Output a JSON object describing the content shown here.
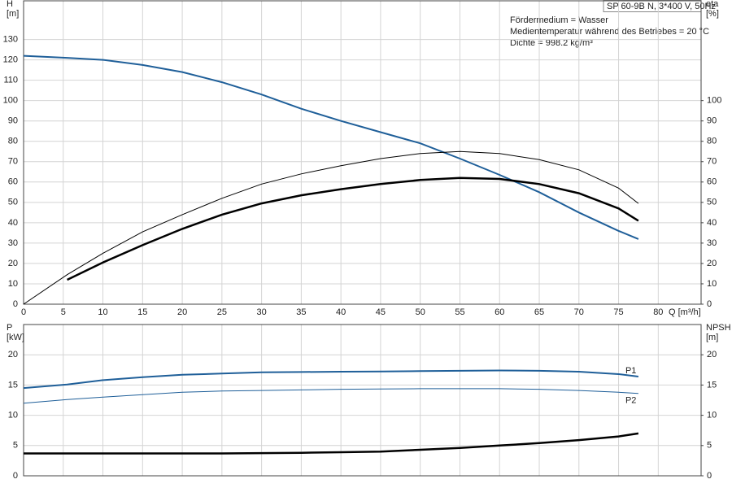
{
  "chart_data": [
    {
      "type": "line",
      "title": "SP 60-9B N, 3*400 V, 50Hz",
      "annotations": [
        "Fördermedium = Wasser",
        "Medientemperatur während des Betriebes = 20 °C",
        "Dichte = 998.2 kg/m³"
      ],
      "ylabel": [
        "H",
        "[m]"
      ],
      "y2label": [
        "eta",
        "[%]"
      ],
      "xlabel": "Q [m³/h]",
      "grid": true,
      "xlim": [
        0,
        85.4
      ],
      "xticks": [
        0,
        5,
        10,
        15,
        20,
        25,
        30,
        35,
        40,
        45,
        50,
        55,
        60,
        65,
        70,
        75,
        80
      ],
      "ylim": [
        0,
        149
      ],
      "yticks": [
        0,
        10,
        20,
        30,
        40,
        50,
        60,
        70,
        80,
        90,
        100,
        110,
        120,
        130
      ],
      "y2lim": [
        0,
        149
      ],
      "y2ticks": [
        0,
        10,
        20,
        30,
        40,
        50,
        60,
        70,
        80,
        90,
        100
      ],
      "x": [
        0,
        5.5,
        10,
        15,
        20,
        25,
        30,
        35,
        40,
        45,
        50,
        55,
        60,
        65,
        70,
        75,
        77.5
      ],
      "series": [
        {
          "color": "#1f5f99",
          "line_width": 2,
          "values": [
            122,
            121,
            120,
            117.5,
            114,
            109,
            103,
            96,
            90,
            84.5,
            79,
            71.5,
            63.5,
            55,
            45,
            36,
            32
          ]
        },
        {
          "color": "#000000",
          "line_width": 1,
          "axis": "y2",
          "values": [
            0,
            14.5,
            25,
            35.5,
            44,
            52,
            59,
            64,
            68,
            71.5,
            74,
            75,
            74,
            71,
            66,
            57,
            49.5
          ]
        },
        {
          "color": "#000000",
          "line_width": 2.5,
          "axis": "y2",
          "values": [
            null,
            12,
            20.5,
            29,
            37,
            44,
            49.5,
            53.5,
            56.5,
            59,
            61,
            62,
            61.5,
            59,
            54.5,
            47,
            41
          ]
        }
      ]
    },
    {
      "type": "line",
      "ylabel": [
        "P",
        "[kW]"
      ],
      "y2label": [
        "NPSH",
        "[m]"
      ],
      "grid": true,
      "ylim": [
        0,
        25
      ],
      "yticks": [
        0,
        5,
        10,
        15,
        20
      ],
      "y2lim": [
        0,
        25
      ],
      "y2ticks": [
        0,
        5,
        10,
        15,
        20
      ],
      "x": [
        0,
        5.5,
        10,
        15,
        20,
        25,
        30,
        35,
        40,
        45,
        50,
        55,
        60,
        65,
        70,
        75,
        77.5
      ],
      "series": [
        {
          "name": "P1",
          "color": "#1f5f99",
          "line_width": 2,
          "values": [
            14.5,
            15.1,
            15.8,
            16.3,
            16.7,
            16.9,
            17.1,
            17.15,
            17.2,
            17.25,
            17.3,
            17.35,
            17.4,
            17.35,
            17.2,
            16.8,
            16.4
          ]
        },
        {
          "name": "P2",
          "color": "#1f5f99",
          "line_width": 1,
          "values": [
            12,
            12.6,
            13,
            13.4,
            13.8,
            14,
            14.1,
            14.2,
            14.3,
            14.35,
            14.4,
            14.4,
            14.4,
            14.3,
            14.1,
            13.8,
            13.6
          ]
        },
        {
          "color": "#000000",
          "line_width": 2.5,
          "axis": "y2",
          "values": [
            3.7,
            3.7,
            3.7,
            3.7,
            3.7,
            3.7,
            3.75,
            3.8,
            3.9,
            4.0,
            4.3,
            4.6,
            5.0,
            5.4,
            5.9,
            6.5,
            7.0
          ]
        }
      ]
    }
  ]
}
